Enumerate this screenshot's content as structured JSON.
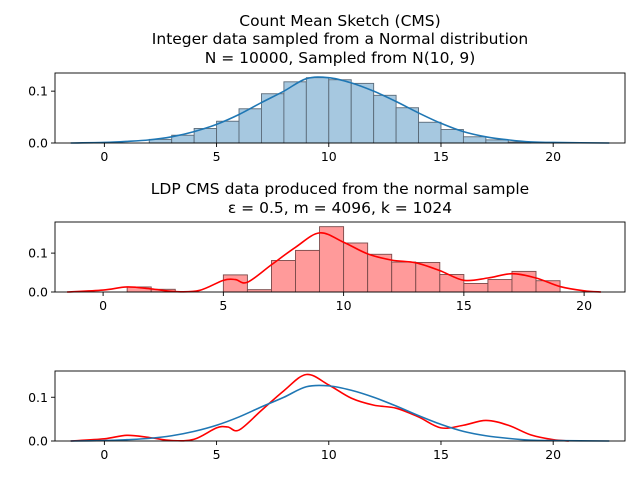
{
  "chart_data": [
    {
      "type": "bar",
      "title_lines": [
        "Count Mean Sketch (CMS)",
        "Integer data sampled from a Normal distribution",
        "N = 10000, Sampled from N(10, 9)"
      ],
      "xlabel": "",
      "ylabel": "",
      "xlim": [
        -2.2,
        23.2
      ],
      "ylim": [
        0,
        0.135
      ],
      "xticks": [
        0,
        5,
        10,
        15,
        20
      ],
      "yticks": [
        0.0,
        0.1
      ],
      "ytick_labels": [
        "0.0",
        "0.1"
      ],
      "grid": false,
      "colors": {
        "bar_fill": "#a6c8e0",
        "bar_edge": "#5a6a78",
        "line": "#1f77b4"
      },
      "histogram": {
        "bin_left": [
          2.0,
          3.0,
          4.0,
          5.0,
          6.0,
          7.0,
          8.0,
          9.0,
          10.0,
          11.0,
          12.0,
          13.0,
          14.0,
          15.0,
          16.0,
          17.0,
          18.0
        ],
        "bin_width": 1.0,
        "values": [
          0.007,
          0.015,
          0.028,
          0.042,
          0.066,
          0.095,
          0.118,
          0.126,
          0.122,
          0.115,
          0.092,
          0.068,
          0.04,
          0.026,
          0.012,
          0.006,
          0.002
        ]
      },
      "kde": {
        "x": [
          -1.5,
          0,
          1,
          2,
          3,
          4,
          5,
          6,
          7,
          8,
          9,
          10,
          11,
          12,
          13,
          14,
          15,
          16,
          17,
          18,
          19,
          20,
          22.5
        ],
        "y": [
          0.0,
          0.001,
          0.003,
          0.006,
          0.012,
          0.022,
          0.036,
          0.055,
          0.078,
          0.1,
          0.124,
          0.126,
          0.116,
          0.1,
          0.08,
          0.058,
          0.038,
          0.022,
          0.012,
          0.006,
          0.002,
          0.001,
          0.0
        ]
      }
    },
    {
      "type": "bar",
      "title_lines": [
        "LDP CMS data produced from the normal sample",
        "ε = 0.5, m = 4096, k = 1024"
      ],
      "xlabel": "",
      "ylabel": "",
      "xlim": [
        -2.0,
        21.7
      ],
      "ylim": [
        0,
        0.18
      ],
      "xticks": [
        0,
        5,
        10,
        15,
        20
      ],
      "yticks": [
        0.0,
        0.1
      ],
      "ytick_labels": [
        "0.0",
        "0.1"
      ],
      "grid": false,
      "colors": {
        "bar_fill": "#ff9a9a",
        "bar_edge": "#7a4a4a",
        "line": "#ff0000"
      },
      "histogram": {
        "bin_left": [
          1.0,
          2.0,
          5.0,
          6.0,
          7.0,
          8.0,
          9.0,
          10.0,
          11.0,
          12.0,
          13.0,
          14.0,
          15.0,
          16.0,
          17.0,
          18.0
        ],
        "bin_width": 1.0,
        "values": [
          0.013,
          0.007,
          0.044,
          0.006,
          0.081,
          0.107,
          0.168,
          0.126,
          0.097,
          0.077,
          0.076,
          0.045,
          0.022,
          0.032,
          0.053,
          0.029
        ]
      },
      "kde": {
        "x": [
          -1.5,
          0,
          1,
          2,
          3,
          4,
          5,
          5.5,
          6,
          7,
          8,
          9,
          10,
          11,
          12,
          13,
          14,
          15,
          16,
          17,
          18,
          19,
          20,
          20.7
        ],
        "y": [
          0.0,
          0.005,
          0.013,
          0.008,
          0.001,
          0.004,
          0.03,
          0.032,
          0.025,
          0.07,
          0.115,
          0.152,
          0.128,
          0.098,
          0.082,
          0.075,
          0.055,
          0.03,
          0.036,
          0.047,
          0.036,
          0.014,
          0.003,
          0.0
        ]
      }
    },
    {
      "type": "line",
      "title_lines": [],
      "xlabel": "",
      "ylabel": "",
      "xlim": [
        -2.2,
        23.2
      ],
      "ylim": [
        0,
        0.16
      ],
      "xticks": [
        0,
        5,
        10,
        15,
        20
      ],
      "yticks": [
        0.0,
        0.1
      ],
      "ytick_labels": [
        "0.0",
        "0.1"
      ],
      "grid": false,
      "series": [
        {
          "color": "#ff0000",
          "x": [
            -1.5,
            0,
            1,
            2,
            3,
            4,
            5,
            5.5,
            6,
            7,
            8,
            9,
            10,
            11,
            12,
            13,
            14,
            15,
            16,
            17,
            18,
            19,
            20,
            20.7
          ],
          "y": [
            0.0,
            0.005,
            0.013,
            0.008,
            0.001,
            0.004,
            0.03,
            0.032,
            0.025,
            0.07,
            0.115,
            0.152,
            0.128,
            0.098,
            0.082,
            0.075,
            0.055,
            0.03,
            0.036,
            0.047,
            0.036,
            0.014,
            0.003,
            0.0
          ]
        },
        {
          "color": "#1f77b4",
          "x": [
            -1.5,
            0,
            1,
            2,
            3,
            4,
            5,
            6,
            7,
            8,
            9,
            10,
            11,
            12,
            13,
            14,
            15,
            16,
            17,
            18,
            19,
            20,
            22.5
          ],
          "y": [
            0.0,
            0.001,
            0.003,
            0.006,
            0.012,
            0.022,
            0.036,
            0.055,
            0.078,
            0.1,
            0.124,
            0.126,
            0.116,
            0.1,
            0.08,
            0.058,
            0.038,
            0.022,
            0.012,
            0.006,
            0.002,
            0.001,
            0.0
          ]
        }
      ]
    }
  ]
}
